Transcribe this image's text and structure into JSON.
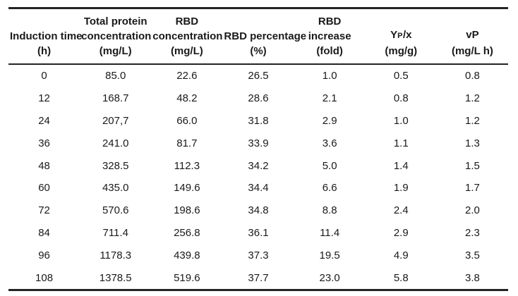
{
  "chart_data": {
    "type": "table",
    "columns": [
      "Induction time (h)",
      "Total protein concentration (mg/L)",
      "RBD concentration (mg/L)",
      "RBD percentage (%)",
      "RBD increase (fold)",
      "YP/x (mg/g)",
      "vP (mg/L h)"
    ],
    "rows": [
      [
        "0",
        "85.0",
        "22.6",
        "26.5",
        "1.0",
        "0.5",
        "0.8"
      ],
      [
        "12",
        "168.7",
        "48.2",
        "28.6",
        "2.1",
        "0.8",
        "1.2"
      ],
      [
        "24",
        "207,7",
        "66.0",
        "31.8",
        "2.9",
        "1.0",
        "1.2"
      ],
      [
        "36",
        "241.0",
        "81.7",
        "33.9",
        "3.6",
        "1.1",
        "1.3"
      ],
      [
        "48",
        "328.5",
        "112.3",
        "34.2",
        "5.0",
        "1.4",
        "1.5"
      ],
      [
        "60",
        "435.0",
        "149.6",
        "34.4",
        "6.6",
        "1.9",
        "1.7"
      ],
      [
        "72",
        "570.6",
        "198.6",
        "34.8",
        "8.8",
        "2.4",
        "2.0"
      ],
      [
        "84",
        "711.4",
        "256.8",
        "36.1",
        "11.4",
        "2.9",
        "2.3"
      ],
      [
        "96",
        "1178.3",
        "439.8",
        "37.3",
        "19.5",
        "4.9",
        "3.5"
      ],
      [
        "108",
        "1378.5",
        "519.6",
        "37.7",
        "23.0",
        "5.8",
        "3.8"
      ]
    ]
  },
  "table": {
    "header": {
      "col1": {
        "line1": "Induction time",
        "unit": "(h)"
      },
      "col2": {
        "line1": "Total protein",
        "line2": "concentration",
        "unit": "(mg/L)"
      },
      "col3": {
        "line1": "RBD",
        "line2": "concentration",
        "unit": "(mg/L)"
      },
      "col4": {
        "line1": "RBD percentage",
        "unit": "(%)"
      },
      "col5": {
        "line1": "RBD",
        "line2": "increase",
        "unit": "(fold)"
      },
      "col6": {
        "main": "Y",
        "sub": "P",
        "post": "/x",
        "unit": "(mg/g)"
      },
      "col7": {
        "main": "v",
        "sub": "",
        "post": "P",
        "unit": "(mg/L h)"
      }
    },
    "colors": {
      "text": "#1a1a1a",
      "border": "#242424",
      "background": "#ffffff"
    }
  }
}
